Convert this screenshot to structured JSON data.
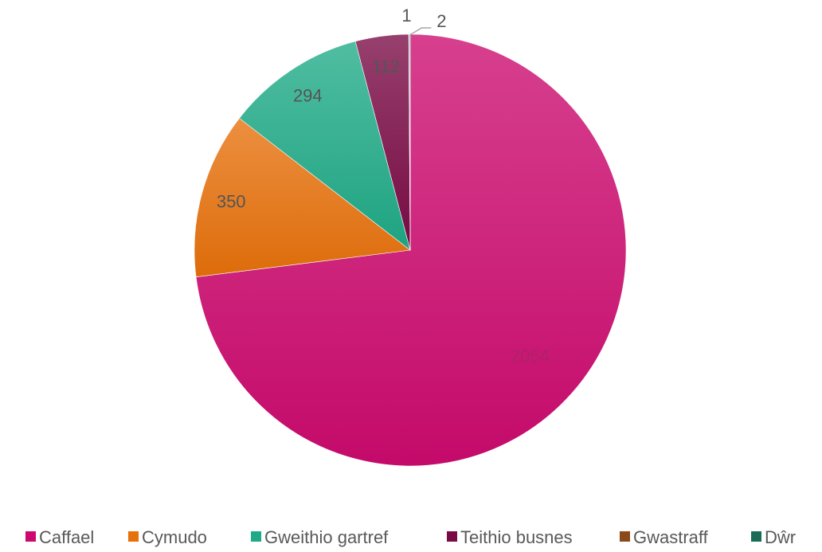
{
  "chart_data": {
    "type": "pie",
    "title": "",
    "legend_position": "bottom",
    "series": [
      {
        "categories": [
          "Caffael",
          "Cymudo",
          "Gweithio gartref",
          "Teithio busnes",
          "Gwastraff",
          "Dŵr"
        ],
        "values": [
          2054,
          350,
          294,
          112,
          1,
          2
        ],
        "data_labels": [
          "2054",
          "350",
          "294",
          "112",
          "1",
          "2"
        ]
      }
    ],
    "colors": [
      "#cc0a6e",
      "#e6700a",
      "#1faa86",
      "#7a0a45",
      "#8a4a1a",
      "#1a6b55"
    ],
    "label_colors": [
      "#b02067",
      "#555555",
      "#555555",
      "#555555",
      "#555555",
      "#555555"
    ]
  }
}
